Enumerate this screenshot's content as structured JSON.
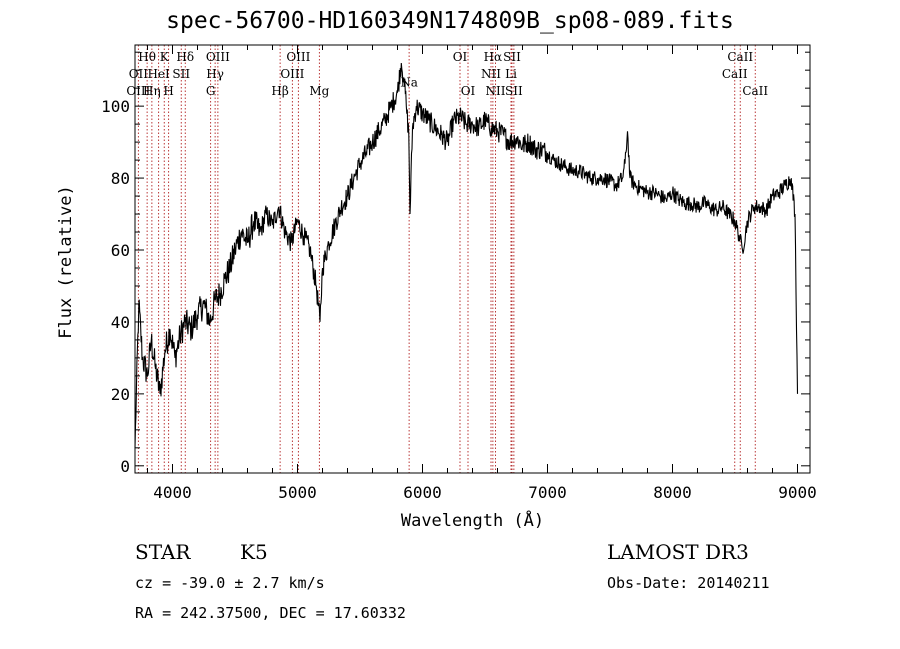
{
  "chart_data": {
    "type": "line",
    "title": "spec-56700-HD160349N174809B_sp08-089.fits",
    "xlabel": "Wavelength (Å)",
    "ylabel": "Flux (relative)",
    "xlim": [
      3700,
      9100
    ],
    "ylim": [
      -2,
      117
    ],
    "xticks": [
      4000,
      5000,
      6000,
      7000,
      8000,
      9000
    ],
    "yticks": [
      0,
      20,
      40,
      60,
      80,
      100
    ],
    "grid": false,
    "series": [
      {
        "color": "#000000",
        "x": [
          3700,
          3730,
          3760,
          3800,
          3830,
          3860,
          3900,
          3940,
          3980,
          4020,
          4060,
          4100,
          4150,
          4200,
          4250,
          4300,
          4340,
          4380,
          4420,
          4460,
          4500,
          4550,
          4600,
          4650,
          4700,
          4750,
          4800,
          4850,
          4900,
          4950,
          5000,
          5050,
          5100,
          5150,
          5180,
          5200,
          5250,
          5300,
          5350,
          5400,
          5450,
          5500,
          5550,
          5600,
          5650,
          5700,
          5750,
          5800,
          5830,
          5850,
          5870,
          5890,
          5900,
          5920,
          5950,
          6000,
          6050,
          6100,
          6150,
          6200,
          6250,
          6300,
          6350,
          6400,
          6450,
          6500,
          6550,
          6600,
          6650,
          6700,
          6750,
          6800,
          6850,
          6900,
          6950,
          7000,
          7050,
          7100,
          7150,
          7200,
          7250,
          7300,
          7350,
          7400,
          7450,
          7500,
          7550,
          7600,
          7620,
          7640,
          7660,
          7700,
          7750,
          7800,
          7850,
          7900,
          7950,
          8000,
          8050,
          8100,
          8150,
          8200,
          8250,
          8300,
          8350,
          8400,
          8450,
          8500,
          8540,
          8560,
          8600,
          8650,
          8700,
          8750,
          8800,
          8850,
          8900,
          8950,
          8980,
          9000
        ],
        "values": [
          5,
          45,
          30,
          25,
          35,
          28,
          20,
          32,
          38,
          30,
          36,
          40,
          38,
          42,
          45,
          40,
          46,
          48,
          52,
          55,
          60,
          65,
          62,
          68,
          65,
          70,
          67,
          72,
          65,
          62,
          68,
          64,
          60,
          50,
          40,
          55,
          62,
          67,
          72,
          75,
          80,
          84,
          87,
          90,
          93,
          96,
          100,
          104,
          112,
          108,
          100,
          92,
          70,
          94,
          100,
          98,
          96,
          94,
          92,
          90,
          96,
          97,
          95,
          95,
          94,
          96,
          94,
          93,
          92,
          90,
          91,
          89,
          90,
          88,
          88,
          87,
          85,
          84,
          83,
          82,
          82,
          81,
          80,
          80,
          80,
          79,
          78,
          80,
          84,
          93,
          80,
          78,
          77,
          76,
          76,
          75,
          74,
          76,
          74,
          73,
          73,
          72,
          73,
          72,
          71,
          72,
          70,
          68,
          63,
          60,
          68,
          72,
          72,
          71,
          75,
          76,
          78,
          80,
          70,
          20
        ]
      }
    ],
    "line_labels": [
      {
        "label": "Hθ",
        "x": 3797,
        "row": 0
      },
      {
        "label": "OII",
        "x": 3727,
        "row": 1
      },
      {
        "label": "OIII",
        "x": 3727,
        "row": 2
      },
      {
        "label": "K",
        "x": 3934,
        "row": 0
      },
      {
        "label": "HeI",
        "x": 3889,
        "row": 1
      },
      {
        "label": "Hη",
        "x": 3835,
        "row": 2
      },
      {
        "label": "Hδ",
        "x": 4102,
        "row": 0
      },
      {
        "label": "SII",
        "x": 4070,
        "row": 1
      },
      {
        "label": "H",
        "x": 3969,
        "row": 2
      },
      {
        "label": "OIII",
        "x": 4363,
        "row": 0
      },
      {
        "label": "Hγ",
        "x": 4341,
        "row": 1
      },
      {
        "label": "G",
        "x": 4305,
        "row": 2
      },
      {
        "label": "OIII",
        "x": 5007,
        "row": 0
      },
      {
        "label": "OIII",
        "x": 4959,
        "row": 1
      },
      {
        "label": "Hβ",
        "x": 4861,
        "row": 2
      },
      {
        "label": "Mg",
        "x": 5175,
        "row": 2
      },
      {
        "label": "Na",
        "x": 5893,
        "row": 1.5
      },
      {
        "label": "OI",
        "x": 6300,
        "row": 0
      },
      {
        "label": "OI",
        "x": 6364,
        "row": 2
      },
      {
        "label": "Hα",
        "x": 6563,
        "row": 0
      },
      {
        "label": "SII",
        "x": 6716,
        "row": 0
      },
      {
        "label": "NII",
        "x": 6548,
        "row": 1
      },
      {
        "label": "Li",
        "x": 6708,
        "row": 1
      },
      {
        "label": "NII",
        "x": 6584,
        "row": 2
      },
      {
        "label": "SII",
        "x": 6731,
        "row": 2
      },
      {
        "label": "CaII",
        "x": 8542,
        "row": 0
      },
      {
        "label": "CaII",
        "x": 8498,
        "row": 1
      },
      {
        "label": "CaII",
        "x": 8662,
        "row": 2
      }
    ],
    "line_color": "#b22222"
  },
  "info": {
    "object_class": "STAR",
    "subclass": "K5",
    "release": "LAMOST DR3",
    "cz": "cz = -39.0 ± 2.7 km/s",
    "obs_date": "Obs-Date: 20140211",
    "coords": "RA = 242.37500, DEC =  17.60332"
  }
}
